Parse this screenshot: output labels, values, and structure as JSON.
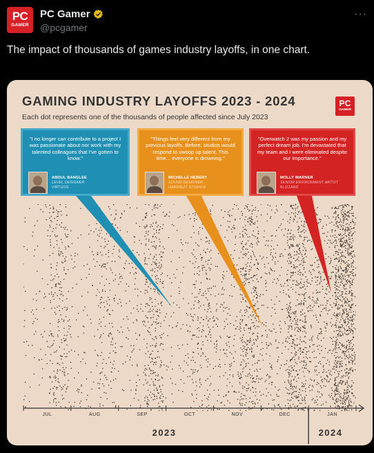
{
  "post": {
    "author_name": "PC Gamer",
    "handle": "@pcgamer",
    "avatar_line1": "PC",
    "avatar_line2": "GAMER",
    "more_label": "···",
    "text": "The impact of thousands of games industry layoffs, in one chart."
  },
  "chart": {
    "title": "GAMING INDUSTRY LAYOFFS 2023 - 2024",
    "subtitle": "Each dot represents one of the thousands of people affected since July 2023",
    "logo_line1": "PC",
    "logo_line2": "GAMER"
  },
  "quotes": [
    {
      "text": "\"I no longer can contribute to a project I was passionate about nor work with my talented colleagues that I've gotten to know.\"",
      "name": "ABDUL BANGLEE",
      "role": "LEVEL DESIGNER",
      "studio": "VIRTUOS",
      "color": "#1f8fb4",
      "points_to_month": "NOV"
    },
    {
      "text": "\"Things feel very different from my previous layoffs. Before, studios would respond to swoop up talent. This time... everyone is drowning.\"",
      "name": "MICHELLE HEBERT",
      "role": "SOUND DESIGNER",
      "studio": "HARDSUIT STUDIOS",
      "color": "#e8901c",
      "points_to_month": "DEC"
    },
    {
      "text": "\"Overwatch 2 was my passion and my perfect dream job. I'm devastated that my team and I were eliminated despite our importance.\"",
      "name": "MOLLY WARNER",
      "role": "SENIOR ENVIRONMENT ARTIST",
      "studio": "BLIZZARD",
      "color": "#d42323",
      "points_to_month": "JAN"
    }
  ],
  "chart_data": {
    "type": "scatter",
    "title": "GAMING INDUSTRY LAYOFFS 2023 - 2024",
    "subtitle": "Each dot represents one of the thousands of people affected since July 2023",
    "categories": [
      "JUL",
      "AUG",
      "SEP",
      "OCT",
      "NOV",
      "DEC",
      "JAN"
    ],
    "years": [
      {
        "label": "2023",
        "months": [
          "JUL",
          "AUG",
          "SEP",
          "OCT",
          "NOV",
          "DEC"
        ]
      },
      {
        "label": "2024",
        "months": [
          "JAN"
        ]
      }
    ],
    "relative_density": [
      0.25,
      0.2,
      0.35,
      0.25,
      0.45,
      0.55,
      0.95
    ],
    "dot_color": "#3a3530",
    "background_color": "#ecd9c7"
  }
}
